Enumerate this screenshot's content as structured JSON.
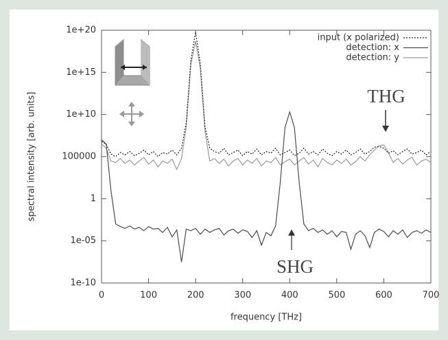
{
  "chart_data": {
    "type": "line",
    "xlabel": "frequency [THz]",
    "ylabel": "spectral intensity [arb. units]",
    "annotations": [
      "THG",
      "SHG"
    ],
    "ylog": true,
    "grid": false,
    "legend": "top-right",
    "xlim": [
      0,
      700
    ],
    "xticks": [
      0,
      100,
      200,
      300,
      400,
      500,
      600,
      700
    ],
    "ylim": [
      1e-10,
      1e+20
    ],
    "yticks": [
      {
        "value": 1e-10,
        "label": "1e-10"
      },
      {
        "value": 1e-05,
        "label": "1e-05"
      },
      1,
      100000,
      {
        "value": 10000000000.0,
        "label": "1e+10"
      },
      {
        "value": 1000000000000000.0,
        "label": "1e+15"
      },
      {
        "value": 1e+20,
        "label": "1e+20"
      }
    ],
    "x": [
      0,
      10,
      20,
      30,
      40,
      50,
      60,
      70,
      80,
      90,
      100,
      110,
      120,
      130,
      140,
      150,
      160,
      170,
      180,
      190,
      200,
      210,
      220,
      230,
      240,
      250,
      260,
      270,
      280,
      290,
      300,
      310,
      320,
      330,
      340,
      350,
      360,
      370,
      380,
      390,
      400,
      410,
      420,
      430,
      440,
      450,
      460,
      470,
      480,
      490,
      500,
      510,
      520,
      530,
      540,
      550,
      560,
      570,
      580,
      590,
      600,
      610,
      620,
      630,
      640,
      650,
      660,
      670,
      680,
      690,
      700
    ],
    "series": [
      {
        "name": "input (x polarized)",
        "color": "#222222",
        "values": [
          6000000.0,
          3000000.0,
          200000.0,
          100000.0,
          300000.0,
          160000.0,
          400000.0,
          130000.0,
          250000.0,
          600000.0,
          160000.0,
          400000.0,
          100000.0,
          300000.0,
          200000.0,
          600000.0,
          160000.0,
          1000000.0,
          1000000000.0,
          3e+16,
          6e+19,
          1e+16,
          300000000.0,
          1000000.0,
          400000.0,
          250000.0,
          1000000.0,
          160000.0,
          300000.0,
          600000.0,
          130000.0,
          400000.0,
          200000.0,
          800000.0,
          160000.0,
          400000.0,
          250000.0,
          1000000.0,
          160000.0,
          300000.0,
          600000.0,
          130000.0,
          250000.0,
          1000000.0,
          200000.0,
          400000.0,
          160000.0,
          800000.0,
          250000.0,
          130000.0,
          400000.0,
          200000.0,
          600000.0,
          160000.0,
          300000.0,
          800000.0,
          200000.0,
          400000.0,
          1300000.0,
          1600000.0,
          1000000.0,
          250000.0,
          500000.0,
          160000.0,
          400000.0,
          800000.0,
          200000.0,
          300000.0,
          600000.0,
          160000.0,
          400000.0
        ]
      },
      {
        "name": "detection: x",
        "color": "#4a4a4a",
        "values": [
          10000000.0,
          3000000.0,
          10,
          0.001,
          0.0005,
          0.0003,
          0.0006,
          0.00025,
          0.0004,
          0.00016,
          0.0005,
          0.00025,
          0.0003,
          0.0001,
          0.0004,
          3e-05,
          0.0002,
          3e-08,
          0.00025,
          0.00016,
          0.0003,
          6e-05,
          0.00025,
          0.0001,
          0.0002,
          0.0003,
          5e-05,
          0.00016,
          0.00025,
          8e-05,
          0.0002,
          0.00013,
          2.5e-05,
          0.00016,
          3e-06,
          0.0001,
          4e-05,
          0.0006,
          100,
          300000000.0,
          20000000000.0,
          300000000.0,
          100,
          0.001,
          0.00016,
          0.0003,
          0.0001,
          0.0002,
          6e-05,
          0.00016,
          3e-05,
          0.00013,
          0.0001,
          1e-06,
          6e-05,
          0.00016,
          4e-05,
          1.6e-06,
          0.0001,
          0.00025,
          0.00013,
          3e-05,
          0.00016,
          6e-05,
          0.0002,
          2.5e-05,
          0.0001,
          0.00016,
          8e-05,
          0.0002,
          0.0001
        ]
      },
      {
        "name": "detection: y",
        "color": "#9a9a9a",
        "values": [
          3000000.0,
          1000000.0,
          30000.0,
          20000.0,
          60000.0,
          16000.0,
          40000.0,
          10000.0,
          30000.0,
          80000.0,
          13000.0,
          40000.0,
          6000.0,
          30000.0,
          16000.0,
          50000.0,
          3000.0,
          60000.0,
          300000000.0,
          1e+16,
          5e+18,
          3000000000000000.0,
          100000000.0,
          30000.0,
          60000.0,
          16000.0,
          50000.0,
          8000.0,
          30000.0,
          60000.0,
          10000.0,
          40000.0,
          16000.0,
          60000.0,
          8000.0,
          30000.0,
          20000.0,
          80000.0,
          10000.0,
          25000.0,
          50000.0,
          10000.0,
          30000.0,
          80000.0,
          13000.0,
          40000.0,
          6000.0,
          60000.0,
          20000.0,
          10000.0,
          40000.0,
          16000.0,
          50000.0,
          10000.0,
          25000.0,
          100000.0,
          30000.0,
          160000.0,
          600000.0,
          2000000.0,
          2500000.0,
          300000.0,
          20000.0,
          60000.0,
          13000.0,
          40000.0,
          80000.0,
          10000.0,
          30000.0,
          50000.0,
          20000.0
        ]
      }
    ]
  }
}
